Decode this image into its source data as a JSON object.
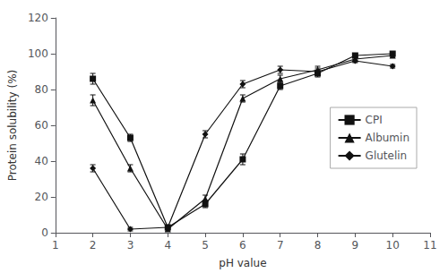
{
  "chart_data": {
    "type": "line",
    "x": [
      2,
      3,
      4,
      5,
      6,
      7,
      8,
      9,
      10
    ],
    "series": [
      {
        "name": "CPI",
        "marker": "square",
        "values": [
          86,
          53,
          3,
          16,
          41,
          82,
          89,
          99,
          100
        ],
        "errors": [
          3,
          2,
          1,
          2,
          3,
          2,
          2,
          1,
          1
        ]
      },
      {
        "name": "Albumin",
        "marker": "triangle",
        "values": [
          74,
          36,
          2,
          19,
          75,
          86,
          91,
          97,
          99
        ],
        "errors": [
          3,
          2,
          1,
          2,
          2,
          2,
          2,
          1,
          1
        ]
      },
      {
        "name": "Glutelin",
        "marker": "diamond",
        "values": [
          36,
          2,
          3,
          55,
          83,
          91,
          90,
          96,
          93
        ],
        "errors": [
          2,
          1,
          1,
          2,
          2,
          2,
          2,
          1,
          1
        ]
      }
    ],
    "color": "#111111",
    "xlabel": "pH value",
    "ylabel": "Protein solubility (%)",
    "xlim": [
      1,
      11
    ],
    "ylim": [
      0,
      120
    ],
    "xticks": [
      1,
      2,
      3,
      4,
      5,
      6,
      7,
      8,
      9,
      10,
      11
    ],
    "yticks": [
      0,
      20,
      40,
      60,
      80,
      100,
      120
    ],
    "grid": false,
    "legend": "right"
  }
}
